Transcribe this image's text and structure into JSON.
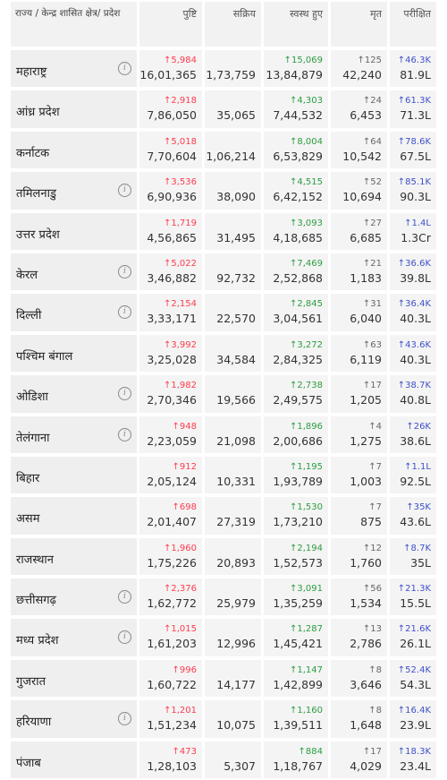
{
  "headers": {
    "state": "राज्य / केन्द्र शासित क्षेत्र/ प्रदेश",
    "confirmed": "पुष्टि",
    "active": "सक्रिय",
    "recovered": "स्वस्थ हुए",
    "deceased": "मृत",
    "tested": "परीक्षित"
  },
  "colors": {
    "confirmed": "#ff3b4e",
    "recovered": "#2a9d3f",
    "deceased": "#666666",
    "tested": "#3f51c8"
  },
  "rows": [
    {
      "name": "महाराष्ट्र",
      "info": true,
      "confirmed_delta": "↑5,984",
      "confirmed": "16,01,365",
      "active": "1,73,759",
      "recovered_delta": "↑15,069",
      "recovered": "13,84,879",
      "deceased_delta": "↑125",
      "deceased": "42,240",
      "tested_delta": "↑46.3K",
      "tested": "81.9L"
    },
    {
      "name": "आंध्र प्रदेश",
      "info": false,
      "confirmed_delta": "↑2,918",
      "confirmed": "7,86,050",
      "active": "35,065",
      "recovered_delta": "↑4,303",
      "recovered": "7,44,532",
      "deceased_delta": "↑24",
      "deceased": "6,453",
      "tested_delta": "↑61.3K",
      "tested": "71.3L"
    },
    {
      "name": "कर्नाटक",
      "info": false,
      "confirmed_delta": "↑5,018",
      "confirmed": "7,70,604",
      "active": "1,06,214",
      "recovered_delta": "↑8,004",
      "recovered": "6,53,829",
      "deceased_delta": "↑64",
      "deceased": "10,542",
      "tested_delta": "↑78.6K",
      "tested": "67.5L"
    },
    {
      "name": "तमिलनाडु",
      "info": true,
      "confirmed_delta": "↑3,536",
      "confirmed": "6,90,936",
      "active": "38,090",
      "recovered_delta": "↑4,515",
      "recovered": "6,42,152",
      "deceased_delta": "↑52",
      "deceased": "10,694",
      "tested_delta": "↑85.1K",
      "tested": "90.3L"
    },
    {
      "name": "उत्तर प्रदेश",
      "info": false,
      "confirmed_delta": "↑1,719",
      "confirmed": "4,56,865",
      "active": "31,495",
      "recovered_delta": "↑3,093",
      "recovered": "4,18,685",
      "deceased_delta": "↑27",
      "deceased": "6,685",
      "tested_delta": "↑1.4L",
      "tested": "1.3Cr"
    },
    {
      "name": "केरल",
      "info": true,
      "confirmed_delta": "↑5,022",
      "confirmed": "3,46,882",
      "active": "92,732",
      "recovered_delta": "↑7,469",
      "recovered": "2,52,868",
      "deceased_delta": "↑21",
      "deceased": "1,183",
      "tested_delta": "↑36.6K",
      "tested": "39.8L"
    },
    {
      "name": "दिल्ली",
      "info": true,
      "confirmed_delta": "↑2,154",
      "confirmed": "3,33,171",
      "active": "22,570",
      "recovered_delta": "↑2,845",
      "recovered": "3,04,561",
      "deceased_delta": "↑31",
      "deceased": "6,040",
      "tested_delta": "↑36.4K",
      "tested": "40.3L"
    },
    {
      "name": "पश्चिम बंगाल",
      "info": false,
      "confirmed_delta": "↑3,992",
      "confirmed": "3,25,028",
      "active": "34,584",
      "recovered_delta": "↑3,272",
      "recovered": "2,84,325",
      "deceased_delta": "↑63",
      "deceased": "6,119",
      "tested_delta": "↑43.6K",
      "tested": "40.3L"
    },
    {
      "name": "ओडिशा",
      "info": true,
      "confirmed_delta": "↑1,982",
      "confirmed": "2,70,346",
      "active": "19,566",
      "recovered_delta": "↑2,738",
      "recovered": "2,49,575",
      "deceased_delta": "↑17",
      "deceased": "1,205",
      "tested_delta": "↑38.7K",
      "tested": "40.8L"
    },
    {
      "name": "तेलंगाना",
      "info": true,
      "confirmed_delta": "↑948",
      "confirmed": "2,23,059",
      "active": "21,098",
      "recovered_delta": "↑1,896",
      "recovered": "2,00,686",
      "deceased_delta": "↑4",
      "deceased": "1,275",
      "tested_delta": "↑26K",
      "tested": "38.6L"
    },
    {
      "name": "बिहार",
      "info": false,
      "confirmed_delta": "↑912",
      "confirmed": "2,05,124",
      "active": "10,331",
      "recovered_delta": "↑1,195",
      "recovered": "1,93,789",
      "deceased_delta": "↑7",
      "deceased": "1,003",
      "tested_delta": "↑1.1L",
      "tested": "92.5L"
    },
    {
      "name": "असम",
      "info": false,
      "confirmed_delta": "↑698",
      "confirmed": "2,01,407",
      "active": "27,319",
      "recovered_delta": "↑1,530",
      "recovered": "1,73,210",
      "deceased_delta": "↑7",
      "deceased": "875",
      "tested_delta": "↑35K",
      "tested": "43.6L"
    },
    {
      "name": "राजस्थान",
      "info": false,
      "confirmed_delta": "↑1,960",
      "confirmed": "1,75,226",
      "active": "20,893",
      "recovered_delta": "↑2,194",
      "recovered": "1,52,573",
      "deceased_delta": "↑12",
      "deceased": "1,760",
      "tested_delta": "↑8.7K",
      "tested": "35L"
    },
    {
      "name": "छत्तीसगढ़",
      "info": true,
      "confirmed_delta": "↑2,376",
      "confirmed": "1,62,772",
      "active": "25,979",
      "recovered_delta": "↑3,091",
      "recovered": "1,35,259",
      "deceased_delta": "↑56",
      "deceased": "1,534",
      "tested_delta": "↑21.3K",
      "tested": "15.5L"
    },
    {
      "name": "मध्य प्रदेश",
      "info": true,
      "confirmed_delta": "↑1,015",
      "confirmed": "1,61,203",
      "active": "12,996",
      "recovered_delta": "↑1,287",
      "recovered": "1,45,421",
      "deceased_delta": "↑13",
      "deceased": "2,786",
      "tested_delta": "↑21.6K",
      "tested": "26.1L"
    },
    {
      "name": "गुजरात",
      "info": false,
      "confirmed_delta": "↑996",
      "confirmed": "1,60,722",
      "active": "14,177",
      "recovered_delta": "↑1,147",
      "recovered": "1,42,899",
      "deceased_delta": "↑8",
      "deceased": "3,646",
      "tested_delta": "↑52.4K",
      "tested": "54.3L"
    },
    {
      "name": "हरियाणा",
      "info": true,
      "confirmed_delta": "↑1,201",
      "confirmed": "1,51,234",
      "active": "10,075",
      "recovered_delta": "↑1,160",
      "recovered": "1,39,511",
      "deceased_delta": "↑8",
      "deceased": "1,648",
      "tested_delta": "↑16.4K",
      "tested": "23.9L"
    },
    {
      "name": "पंजाब",
      "info": false,
      "confirmed_delta": "↑473",
      "confirmed": "1,28,103",
      "active": "5,307",
      "recovered_delta": "↑884",
      "recovered": "1,18,767",
      "deceased_delta": "↑17",
      "deceased": "4,029",
      "tested_delta": "↑18.3K",
      "tested": "23.4L"
    }
  ]
}
